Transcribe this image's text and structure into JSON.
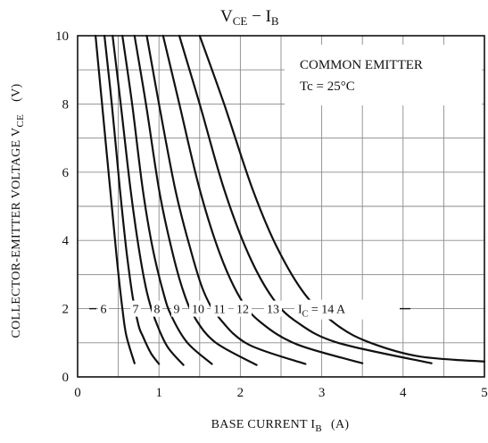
{
  "chart_data": {
    "type": "line",
    "title": {
      "main": "V",
      "main_sub": "CE",
      "sep": " − ",
      "second": "I",
      "second_sub": "B"
    },
    "xlabel": {
      "prefix": "BASE CURRENT  I",
      "sub": "B",
      "unit": "(A)"
    },
    "ylabel": {
      "prefix": "COLLECTOR-EMITTER VOLTAGE   V",
      "sub": "CE",
      "unit": "(V)"
    },
    "xlim": [
      0,
      5
    ],
    "ylim": [
      0,
      10
    ],
    "x_ticks": [
      "0",
      "1",
      "2",
      "3",
      "4",
      "5"
    ],
    "y_ticks": [
      "0",
      "2",
      "4",
      "6",
      "8",
      "10"
    ],
    "grid": true,
    "legend": {
      "position": "top-right",
      "line1": "COMMON EMITTER",
      "line2": "Tc = 25°C"
    },
    "curve_labels": [
      "6",
      "7",
      "8",
      "9",
      "10",
      "11",
      "12",
      "13"
    ],
    "last_label": {
      "prefix": "I",
      "sub": "C",
      "suffix": " = 14 A"
    },
    "series": [
      {
        "name": "6",
        "x": [
          0.22,
          0.3,
          0.4,
          0.48,
          0.55,
          0.6,
          0.7
        ],
        "y": [
          10,
          8,
          5.5,
          3.5,
          2.0,
          1.2,
          0.4
        ]
      },
      {
        "name": "7",
        "x": [
          0.33,
          0.42,
          0.52,
          0.6,
          0.68,
          0.75,
          0.8,
          0.9,
          1.0
        ],
        "y": [
          10,
          8,
          5.5,
          3.7,
          2.3,
          1.5,
          1.2,
          0.7,
          0.38
        ]
      },
      {
        "name": "8",
        "x": [
          0.43,
          0.53,
          0.65,
          0.75,
          0.85,
          0.95,
          1.1,
          1.3
        ],
        "y": [
          10,
          8,
          5.5,
          3.8,
          2.5,
          1.7,
          0.9,
          0.35
        ]
      },
      {
        "name": "9",
        "x": [
          0.55,
          0.67,
          0.8,
          0.92,
          1.05,
          1.15,
          1.35,
          1.65
        ],
        "y": [
          10,
          8,
          5.5,
          3.8,
          2.5,
          1.8,
          1.0,
          0.38
        ]
      },
      {
        "name": "10",
        "x": [
          0.7,
          0.84,
          1.0,
          1.15,
          1.3,
          1.45,
          1.7,
          2.2
        ],
        "y": [
          10,
          8,
          5.5,
          3.8,
          2.5,
          1.7,
          1.0,
          0.35
        ]
      },
      {
        "name": "11",
        "x": [
          0.85,
          1.0,
          1.2,
          1.38,
          1.55,
          1.75,
          2.1,
          2.8
        ],
        "y": [
          10,
          8,
          5.5,
          3.8,
          2.5,
          1.7,
          0.95,
          0.38
        ]
      },
      {
        "name": "12",
        "x": [
          1.05,
          1.25,
          1.5,
          1.75,
          2.0,
          2.25,
          2.7,
          3.5
        ],
        "y": [
          10,
          8,
          5.5,
          3.6,
          2.3,
          1.6,
          0.95,
          0.4
        ]
      },
      {
        "name": "13",
        "x": [
          1.25,
          1.5,
          1.8,
          2.1,
          2.4,
          2.7,
          3.2,
          4.35
        ],
        "y": [
          10,
          8,
          5.5,
          3.6,
          2.3,
          1.6,
          1.0,
          0.4
        ]
      },
      {
        "name": "14",
        "x": [
          1.5,
          1.8,
          2.15,
          2.45,
          2.8,
          3.2,
          3.6,
          4.2,
          5.0
        ],
        "y": [
          10,
          8,
          5.5,
          3.8,
          2.4,
          1.5,
          1.0,
          0.6,
          0.45
        ]
      }
    ]
  }
}
